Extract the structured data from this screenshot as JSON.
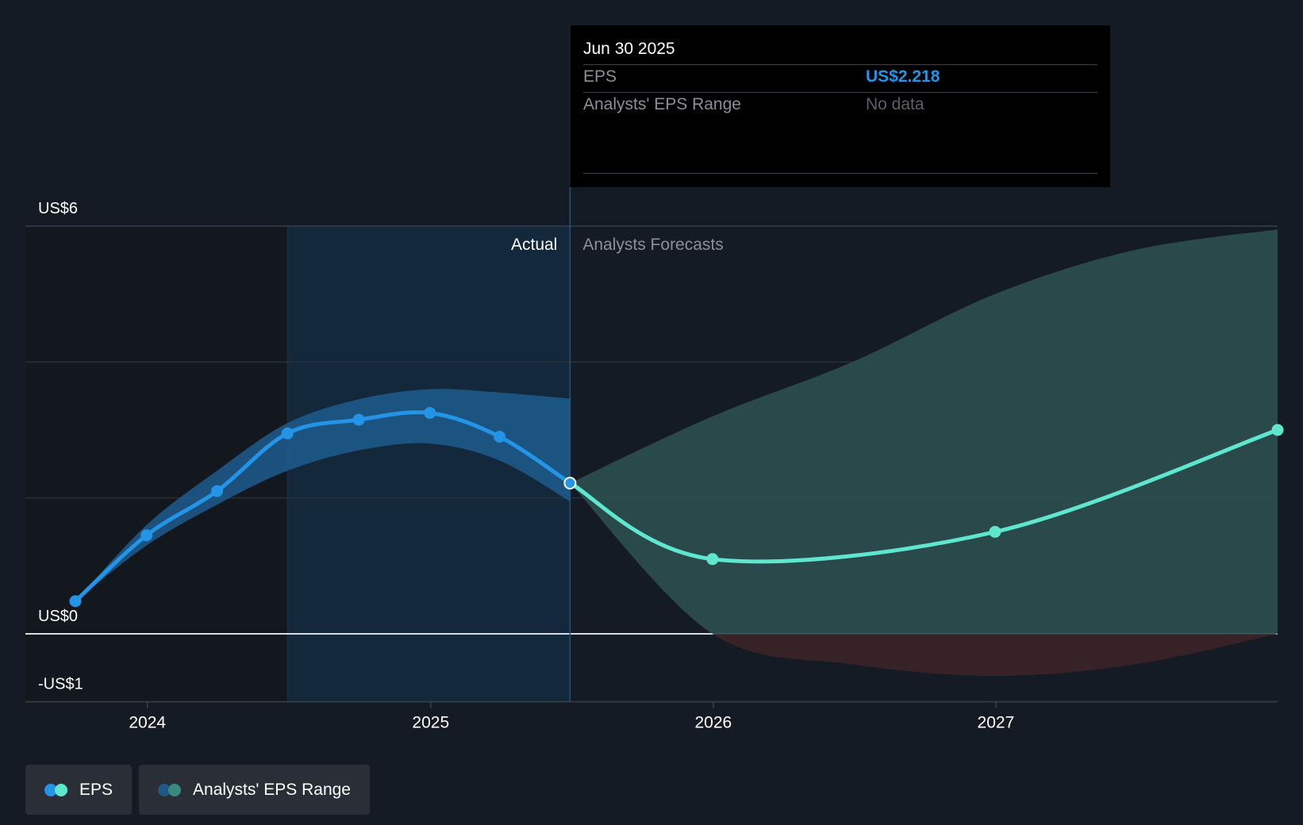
{
  "tooltip": {
    "date": "Jun 30 2025",
    "rows": [
      {
        "label": "EPS",
        "value": "US$2.218"
      },
      {
        "label": "Analysts' EPS Range",
        "value": "No data"
      }
    ]
  },
  "legend": [
    {
      "label": "EPS",
      "colors": [
        "#2394e6",
        "#5ee6cf"
      ]
    },
    {
      "label": "Analysts' EPS Range",
      "colors": [
        "#1f5a86",
        "#3b8a80"
      ]
    }
  ],
  "colors": {
    "actual_line": "#2394e6",
    "forecast_line": "#5ee6cf",
    "actual_band": "#1e5c8e",
    "forecast_band": "#2b4f50",
    "negative_band": "#3a2428",
    "background": "#151b24"
  },
  "chart_data": {
    "type": "line",
    "title": "",
    "xlabel": "",
    "ylabel": "",
    "ylim": [
      -1,
      6
    ],
    "y_ticks": [
      {
        "value": 6,
        "label": "US$6"
      },
      {
        "value": 0,
        "label": "US$0"
      },
      {
        "value": -1,
        "label": "-US$1"
      }
    ],
    "y_gridlines": [
      6,
      4,
      2,
      0,
      -1
    ],
    "x_range": [
      "2023-09-30",
      "2027-12-31"
    ],
    "x_ticks": [
      {
        "value": "2024-01-01",
        "label": "2024"
      },
      {
        "value": "2025-01-01",
        "label": "2025"
      },
      {
        "value": "2026-01-01",
        "label": "2026"
      },
      {
        "value": "2027-01-01",
        "label": "2027"
      }
    ],
    "divider_date": "2025-06-30",
    "past_shade_start": "2024-06-30",
    "section_labels": {
      "actual": "Actual",
      "forecast": "Analysts Forecasts"
    },
    "series": [
      {
        "name": "EPS",
        "kind": "actual",
        "points": [
          {
            "x": "2023-09-30",
            "y": 0.48
          },
          {
            "x": "2023-12-31",
            "y": 1.45
          },
          {
            "x": "2024-03-31",
            "y": 2.1
          },
          {
            "x": "2024-06-30",
            "y": 2.95
          },
          {
            "x": "2024-09-30",
            "y": 3.15
          },
          {
            "x": "2024-12-31",
            "y": 3.25
          },
          {
            "x": "2025-03-31",
            "y": 2.9
          },
          {
            "x": "2025-06-30",
            "y": 2.218
          }
        ]
      },
      {
        "name": "EPS",
        "kind": "forecast",
        "points": [
          {
            "x": "2025-06-30",
            "y": 2.218
          },
          {
            "x": "2025-12-31",
            "y": 1.1
          },
          {
            "x": "2026-12-31",
            "y": 1.5
          },
          {
            "x": "2027-12-31",
            "y": 3.0
          }
        ]
      }
    ],
    "ranges": [
      {
        "name": "Analysts' EPS Range",
        "kind": "actual",
        "points": [
          {
            "x": "2023-09-30",
            "low": 0.48,
            "high": 0.48
          },
          {
            "x": "2023-12-31",
            "low": 1.3,
            "high": 1.6
          },
          {
            "x": "2024-03-31",
            "low": 1.9,
            "high": 2.4
          },
          {
            "x": "2024-06-30",
            "low": 2.4,
            "high": 3.1
          },
          {
            "x": "2024-09-30",
            "low": 2.7,
            "high": 3.45
          },
          {
            "x": "2024-12-31",
            "low": 2.8,
            "high": 3.6
          },
          {
            "x": "2025-03-31",
            "low": 2.55,
            "high": 3.55
          },
          {
            "x": "2025-06-30",
            "low": 1.95,
            "high": 3.46
          }
        ]
      },
      {
        "name": "Analysts' EPS Range",
        "kind": "forecast",
        "points": [
          {
            "x": "2025-06-30",
            "low": 2.218,
            "high": 2.218
          },
          {
            "x": "2025-12-31",
            "low": 0.0,
            "high": 3.2
          },
          {
            "x": "2026-06-30",
            "low": -0.45,
            "high": 4.0
          },
          {
            "x": "2026-12-31",
            "low": -0.62,
            "high": 5.0
          },
          {
            "x": "2027-06-30",
            "low": -0.45,
            "high": 5.65
          },
          {
            "x": "2027-12-31",
            "low": 0.0,
            "high": 5.95
          }
        ]
      }
    ]
  }
}
